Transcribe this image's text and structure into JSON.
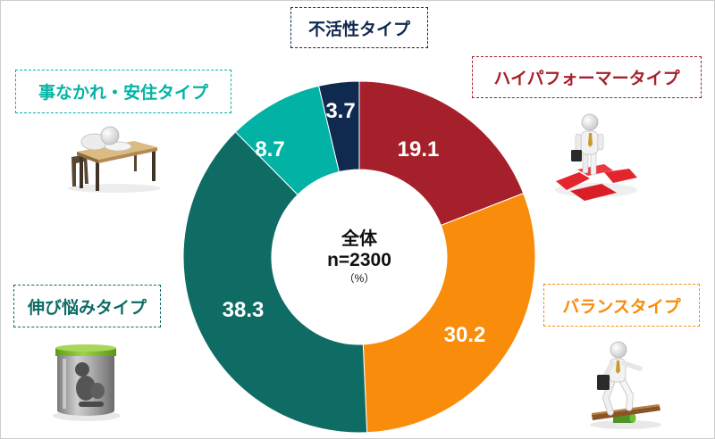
{
  "chart_data": {
    "type": "pie",
    "donut": true,
    "direction": "clockwise",
    "start": "top",
    "categories": [
      "ハイパフォーマータイプ",
      "バランスタイプ",
      "伸び悩みタイプ",
      "事なかれ・安住タイプ",
      "不活性タイプ"
    ],
    "values": [
      19.1,
      30.2,
      38.3,
      8.7,
      3.7
    ],
    "colors": [
      "#A6202C",
      "#F98C0B",
      "#0F6C65",
      "#02B3A5",
      "#10294F"
    ],
    "center_label": {
      "title": "全体",
      "sample": "n=2300",
      "unit": "（%）"
    }
  },
  "icons": {
    "high_performer": "person-on-puzzle-icon",
    "balance": "person-balancing-icon",
    "stagnant": "person-in-jar-icon",
    "complacent": "person-slumped-at-desk-icon"
  }
}
